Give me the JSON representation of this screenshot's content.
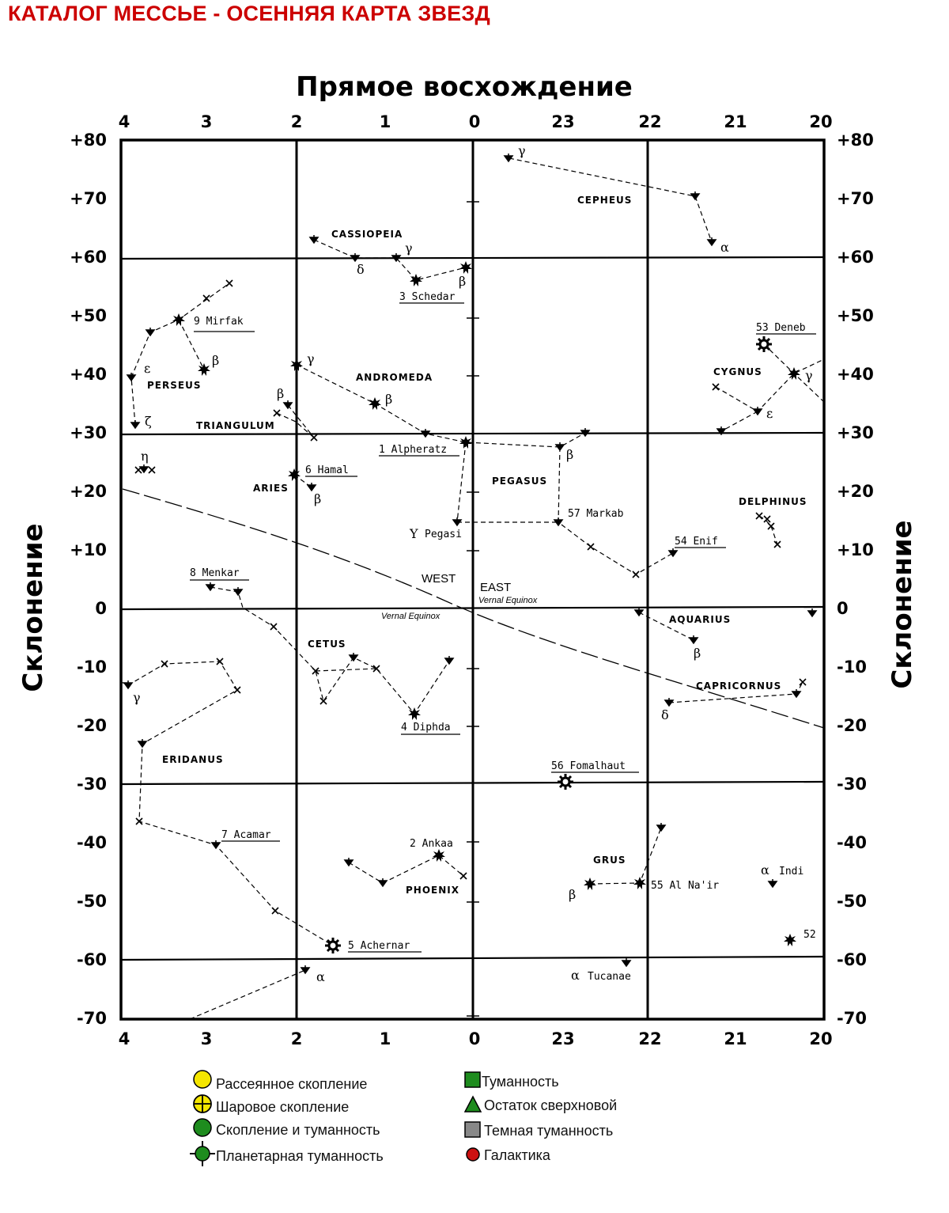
{
  "page": {
    "title": "КАТАЛОГ МЕССЬЕ - ОСЕННЯЯ КАРТА ЗВЕЗД"
  },
  "axes": {
    "top_title": "Прямое восхождение",
    "left_title": "Склонение",
    "right_title": "Склонение",
    "ra_ticks": [
      "4",
      "3",
      "2",
      "1",
      "0",
      "23",
      "22",
      "21",
      "20"
    ],
    "dec_ticks": [
      "+80",
      "+70",
      "+60",
      "+50",
      "+40",
      "+30",
      "+20",
      "+10",
      "0",
      "-10",
      "-20",
      "-30",
      "-40",
      "-50",
      "-60",
      "-70"
    ]
  },
  "constellations": {
    "cassiopeia": "CASSIOPEIA",
    "cepheus": "CEPHEUS",
    "andromeda": "ANDROMEDA",
    "perseus": "PERSEUS",
    "triangulum": "TRIANGULUM",
    "aries": "ARIES",
    "pegasus": "PEGASUS",
    "cygnus": "CYGNUS",
    "delphinus": "DELPHINUS",
    "aquarius": "AQUARIUS",
    "capricornus": "CAPRICORNUS",
    "cetus": "CETUS",
    "eridanus": "ERIDANUS",
    "phoenix": "PHOENIX",
    "grus": "GRUS"
  },
  "stars": {
    "schedar": "3 Schedar",
    "mirfak": "9 Mirfak",
    "deneb": "53 Deneb",
    "alpheratz": "1 Alpheratz",
    "hamal": "6 Hamal",
    "markab": "57 Markab",
    "enif": "54 Enif",
    "gamma_pegasi": "Pegasi",
    "menkar": "8 Menkar",
    "diphda": "4 Diphda",
    "fomalhaut": "56 Fomalhaut",
    "acamar": "7 Acamar",
    "ankaa": "2 Ankaa",
    "al_nair": "55 Al Na'ir",
    "alpha_indi": "Indi",
    "achernar": "5 Achernar",
    "tucanae": "Tucanae",
    "m52": "52"
  },
  "greek": {
    "alpha": "α",
    "beta": "β",
    "gamma": "γ",
    "delta": "δ",
    "epsilon": "ε",
    "zeta": "ζ",
    "eta": "η",
    "upsilon_gamma": "Υ"
  },
  "annotations": {
    "west": "WEST",
    "east": "EAST",
    "vernal_left": "Vernal Equinox",
    "vernal_right": "Vernal Equinox"
  },
  "legend": {
    "open_cluster": "Рассеянное скопление",
    "globular_cluster": "Шаровое скопление",
    "cluster_nebula": "Скопление и туманность",
    "planetary_nebula": "Планетарная туманность",
    "nebula": "Туманность",
    "supernova_remnant": "Остаток сверхновой",
    "dark_nebula": "Темная туманность",
    "galaxy": "Галактика",
    "colors": {
      "open_cluster": "#f5e600",
      "globular_cluster": "#f5e600",
      "cluster_nebula": "#1e8c1e",
      "planetary_nebula": "#1e8c1e",
      "nebula": "#1e8c1e",
      "supernova_remnant": "#1e8c1e",
      "dark_nebula": "#888888",
      "galaxy": "#cc1111"
    }
  }
}
